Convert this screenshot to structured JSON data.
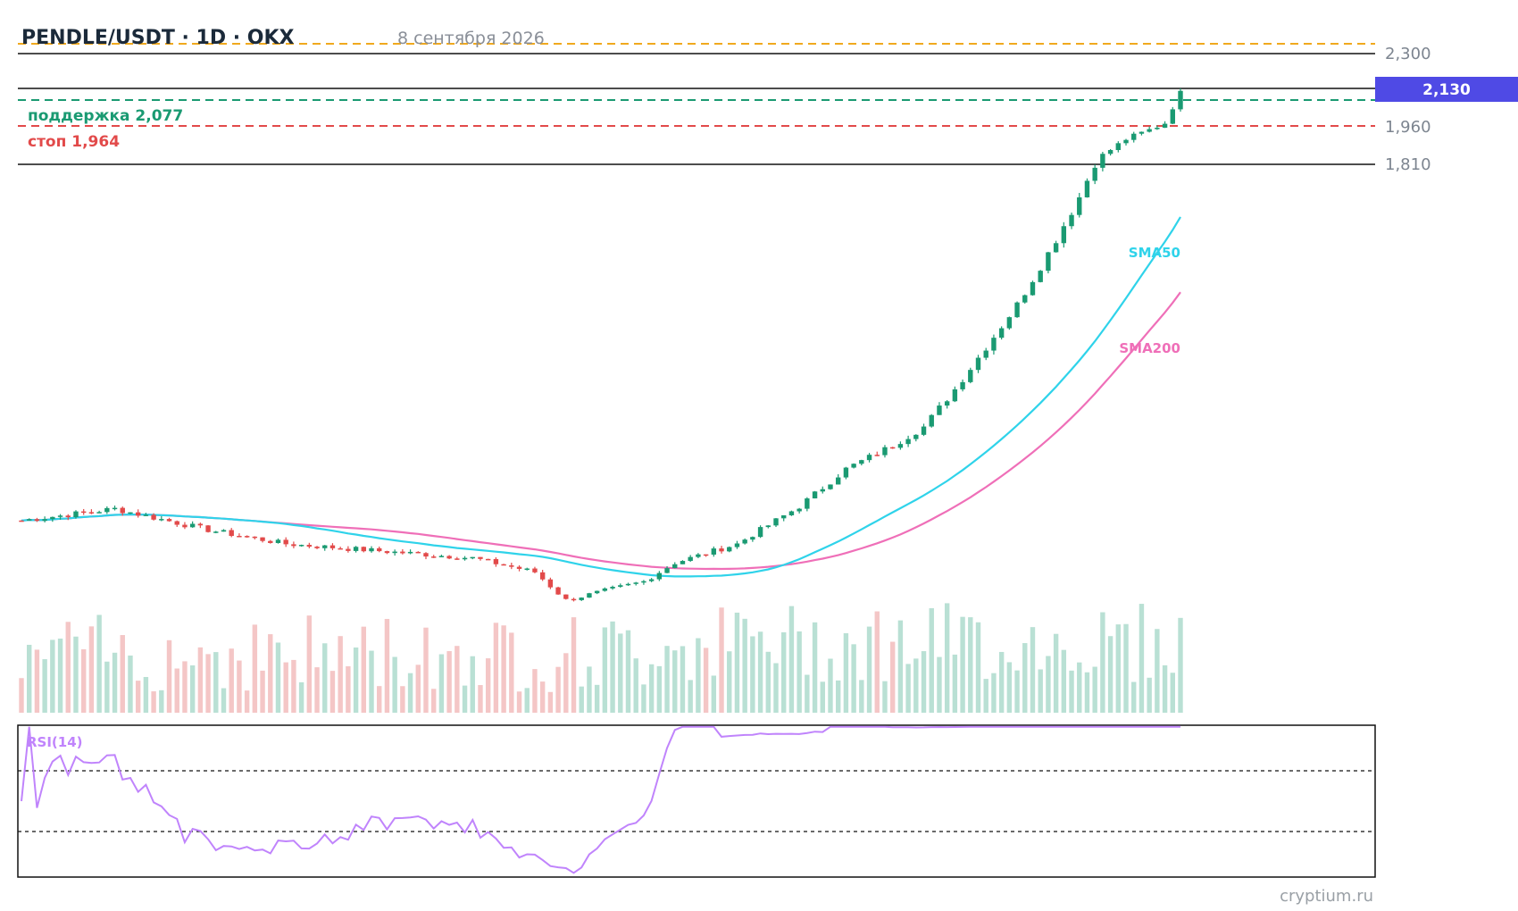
{
  "header": {
    "title": "PENDLE/USDT · 1D · OKX",
    "date": "8 сентября 2026"
  },
  "watermark": "cryptium.ru",
  "colors": {
    "up": "#1a9a72",
    "down": "#e24a4a",
    "up_volume": "#b9e0d4",
    "down_volume": "#f4c6c6",
    "sma50": "#2fd3ea",
    "sma200": "#ef6fb8",
    "rsi": "#c084fc",
    "support": "#1a9a72",
    "stop": "#e24a4a",
    "resistance": "#f0a91e",
    "price_badge": "#4f4ae5"
  },
  "chart_data": {
    "type": "candlestick",
    "symbol": "PENDLE/USDT",
    "timeframe": "1D",
    "exchange": "OKX",
    "price_axis_ticks": [
      "2,300",
      "1,960",
      "1,810"
    ],
    "price_axis_values": [
      2.3,
      1.96,
      1.81
    ],
    "last_price": {
      "label": "2,130",
      "value": 2.13
    },
    "levels": [
      {
        "kind": "resistance",
        "label": "",
        "value": 2.335
      },
      {
        "kind": "support",
        "label": "поддержка 2,077",
        "value": 2.077
      },
      {
        "kind": "stop",
        "label": "стоп 1,964",
        "value": 1.964
      }
    ],
    "series_labels": {
      "sma50": "SMA50",
      "sma200": "SMA200",
      "rsi": "RSI(14)"
    },
    "rsi_levels": [
      70,
      30
    ],
    "candles": {
      "count": 150,
      "start": 1.05,
      "path": [
        [
          0,
          1.05
        ],
        [
          12,
          1.075
        ],
        [
          24,
          1.03
        ],
        [
          34,
          1.0
        ],
        [
          46,
          0.985
        ],
        [
          58,
          0.97
        ],
        [
          66,
          0.94
        ],
        [
          70,
          0.88
        ],
        [
          80,
          0.92
        ],
        [
          84,
          0.96
        ],
        [
          92,
          1.0
        ],
        [
          100,
          1.08
        ],
        [
          106,
          1.16
        ],
        [
          112,
          1.21
        ],
        [
          116,
          1.25
        ],
        [
          120,
          1.33
        ],
        [
          124,
          1.42
        ],
        [
          128,
          1.51
        ],
        [
          132,
          1.62
        ],
        [
          136,
          1.74
        ],
        [
          139,
          1.85
        ],
        [
          142,
          1.92
        ],
        [
          145,
          1.96
        ],
        [
          147,
          1.99
        ],
        [
          149,
          2.13
        ]
      ]
    }
  }
}
